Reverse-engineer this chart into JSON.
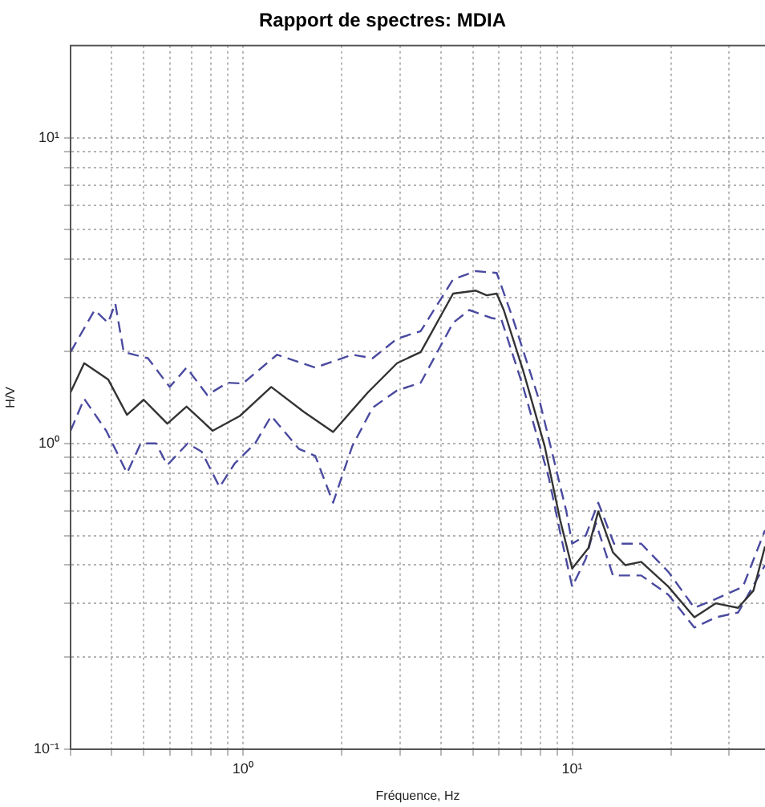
{
  "chart_data": {
    "type": "line",
    "title": "Rapport de spectres: MDIA",
    "xlabel": "Fréquence, Hz",
    "ylabel": "H/V",
    "log": "xy",
    "grid": true,
    "legend": false,
    "marker": "none",
    "xlim": [
      0.3,
      38.5
    ],
    "ylim": [
      0.1,
      20
    ],
    "xticks": [
      {
        "value": 0.3,
        "label": null
      },
      {
        "value": 0.4,
        "label": null
      },
      {
        "value": 0.5,
        "label": null
      },
      {
        "value": 0.6,
        "label": null
      },
      {
        "value": 0.7,
        "label": null
      },
      {
        "value": 0.8,
        "label": null
      },
      {
        "value": 0.9,
        "label": null
      },
      {
        "value": 1,
        "label": "10⁰"
      },
      {
        "value": 2,
        "label": null
      },
      {
        "value": 3,
        "label": null
      },
      {
        "value": 4,
        "label": null
      },
      {
        "value": 5,
        "label": null
      },
      {
        "value": 6,
        "label": null
      },
      {
        "value": 7,
        "label": null
      },
      {
        "value": 8,
        "label": null
      },
      {
        "value": 9,
        "label": null
      },
      {
        "value": 10,
        "label": "10¹"
      },
      {
        "value": 20,
        "label": null
      },
      {
        "value": 30,
        "label": null
      }
    ],
    "yticks": [
      {
        "value": 0.1,
        "label": "10⁻¹"
      },
      {
        "value": 0.2,
        "label": null
      },
      {
        "value": 0.3,
        "label": null
      },
      {
        "value": 0.4,
        "label": null
      },
      {
        "value": 0.5,
        "label": null
      },
      {
        "value": 0.6,
        "label": null
      },
      {
        "value": 0.7,
        "label": null
      },
      {
        "value": 0.8,
        "label": null
      },
      {
        "value": 0.9,
        "label": null
      },
      {
        "value": 1,
        "label": "10⁰"
      },
      {
        "value": 2,
        "label": null
      },
      {
        "value": 3,
        "label": null
      },
      {
        "value": 4,
        "label": null
      },
      {
        "value": 5,
        "label": null
      },
      {
        "value": 6,
        "label": null
      },
      {
        "value": 7,
        "label": null
      },
      {
        "value": 8,
        "label": null
      },
      {
        "value": 9,
        "label": null
      },
      {
        "value": 10,
        "label": "10¹"
      }
    ],
    "series": [
      {
        "color": "#4a4aa0",
        "line_style": "dashed",
        "x": [
          0.3,
          0.355,
          0.39,
          0.41,
          0.435,
          0.515,
          0.6,
          0.675,
          0.78,
          0.9,
          1.0,
          1.27,
          1.66,
          2.15,
          2.48,
          2.94,
          3.47,
          4.35,
          5.1,
          5.9,
          6.6,
          8.0,
          9.6,
          10,
          11,
          12,
          13.4,
          16.2,
          19.6,
          23.5,
          27.3,
          33,
          38.5
        ],
        "values": [
          1.99,
          2.73,
          2.48,
          2.87,
          1.99,
          1.9,
          1.53,
          1.77,
          1.44,
          1.58,
          1.57,
          1.95,
          1.77,
          1.95,
          1.9,
          2.2,
          2.33,
          3.44,
          3.66,
          3.61,
          2.57,
          1.35,
          0.6,
          0.47,
          0.5,
          0.64,
          0.47,
          0.47,
          0.38,
          0.29,
          0.31,
          0.34,
          0.52
        ]
      },
      {
        "color": "#333333",
        "line_style": "solid",
        "x": [
          0.3,
          0.33,
          0.39,
          0.445,
          0.5,
          0.59,
          0.675,
          0.81,
          0.98,
          1.22,
          1.53,
          1.88,
          2.4,
          2.94,
          3.47,
          4.35,
          5.1,
          5.5,
          5.9,
          6.2,
          7.1,
          8.25,
          9.2,
          10,
          11.2,
          12,
          13.3,
          14.5,
          16.2,
          19.6,
          23.5,
          27.3,
          31.9,
          35.5,
          38.5
        ],
        "values": [
          1.47,
          1.83,
          1.62,
          1.24,
          1.39,
          1.16,
          1.32,
          1.1,
          1.23,
          1.53,
          1.27,
          1.09,
          1.47,
          1.83,
          1.99,
          3.09,
          3.16,
          3.05,
          3.09,
          2.73,
          1.73,
          0.98,
          0.56,
          0.39,
          0.455,
          0.6,
          0.44,
          0.4,
          0.41,
          0.34,
          0.27,
          0.3,
          0.29,
          0.33,
          0.46
        ]
      },
      {
        "color": "#4a4aa0",
        "line_style": "dashed",
        "x": [
          0.3,
          0.33,
          0.385,
          0.445,
          0.49,
          0.545,
          0.59,
          0.68,
          0.75,
          0.85,
          0.945,
          1.09,
          1.22,
          1.48,
          1.66,
          1.88,
          2.15,
          2.48,
          2.94,
          3.47,
          4.35,
          4.87,
          5.7,
          6.1,
          7.1,
          8.5,
          9.2,
          10,
          11,
          11.8,
          13.3,
          16.2,
          19.6,
          23.5,
          27.3,
          31.9,
          38.5
        ],
        "values": [
          1.1,
          1.4,
          1.1,
          0.8,
          1.0,
          1.0,
          0.85,
          1.0,
          0.94,
          0.72,
          0.86,
          1.0,
          1.23,
          0.96,
          0.91,
          0.64,
          0.98,
          1.31,
          1.49,
          1.58,
          2.48,
          2.73,
          2.57,
          2.54,
          1.53,
          0.77,
          0.51,
          0.34,
          0.42,
          0.55,
          0.37,
          0.37,
          0.32,
          0.25,
          0.27,
          0.28,
          0.4
        ]
      }
    ]
  }
}
